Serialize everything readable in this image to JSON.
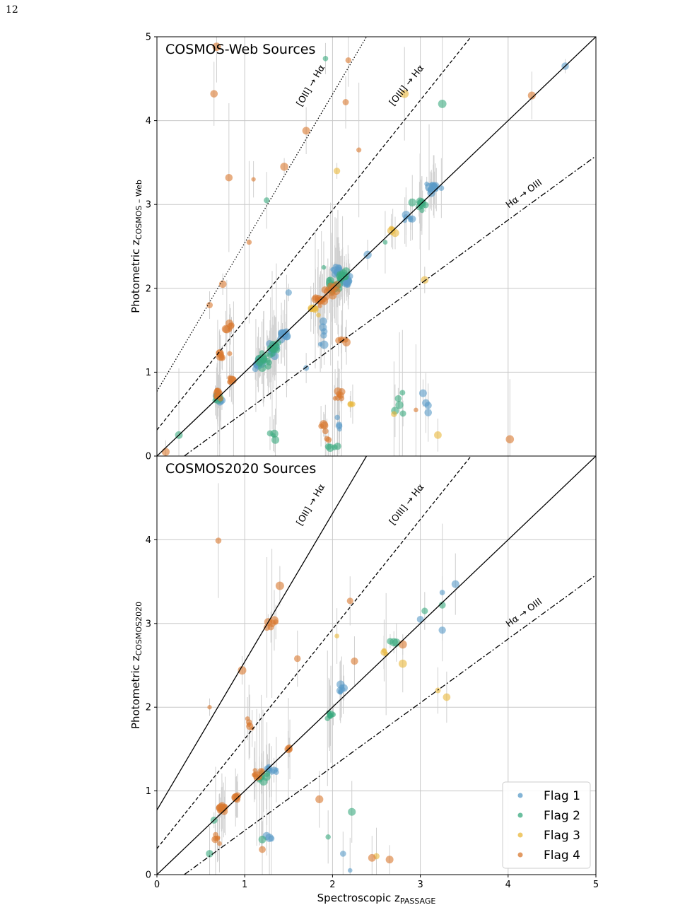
{
  "page_number": "12",
  "colors": {
    "flag1": "#5a9bc8",
    "flag2": "#3aaa7f",
    "flag3": "#e9b73a",
    "flag4": "#d8782f",
    "grid": "#c8c8c8",
    "errbar": "#d0d0d0"
  },
  "shared_x": {
    "label_main": "Spectroscopic z",
    "label_sub": "PASSAGE",
    "xlim": [
      0,
      5
    ],
    "ticks": [
      "0",
      "1",
      "2",
      "3",
      "4",
      "5"
    ]
  },
  "legend": {
    "placement": "lower-right",
    "items": [
      "Flag 1",
      "Flag 2",
      "Flag 3",
      "Flag 4"
    ]
  },
  "chart_data": [
    {
      "type": "scatter",
      "title": "COSMOS-Web Sources",
      "ylabel_main": "Photometric z",
      "ylabel_sub": "COSMOS – Web",
      "xlim": [
        0,
        5
      ],
      "ylim": [
        0,
        5
      ],
      "yticks": [
        "0",
        "1",
        "2",
        "3",
        "4",
        "5"
      ],
      "grid": true,
      "relations": [
        {
          "label": "[OII] → Hα",
          "style": "dotted",
          "slope": 1.7712,
          "intercept": 0.7712,
          "label_at": [
            1.78,
            4.4
          ]
        },
        {
          "label": "[OIII] → Hα",
          "style": "dashed",
          "slope": 1.3107,
          "intercept": 0.3107,
          "label_at": [
            2.87,
            4.4
          ]
        },
        {
          "label": "",
          "style": "solid",
          "slope": 1,
          "intercept": 0
        },
        {
          "label": "Hα → OIII",
          "style": "dashdot",
          "slope": 0.763,
          "intercept": -0.237,
          "label_at": [
            4.2,
            3.1
          ]
        }
      ],
      "series": [
        {
          "name": "Flag 1",
          "clusters": [
            [
              1.15,
              1.1,
              0.1,
              0.1,
              12
            ],
            [
              1.32,
              1.25,
              0.12,
              0.12,
              14
            ],
            [
              1.45,
              1.45,
              0.1,
              0.1,
              10
            ],
            [
              2.05,
              2.2,
              0.08,
              0.08,
              14
            ],
            [
              2.15,
              2.1,
              0.08,
              0.08,
              12
            ],
            [
              3.15,
              3.2,
              0.1,
              0.1,
              14
            ],
            [
              2.85,
              2.85,
              0.1,
              0.1,
              6
            ],
            [
              0.72,
              0.68,
              0.06,
              0.06,
              6
            ],
            [
              1.9,
              1.3,
              0.06,
              0.5,
              6
            ],
            [
              2.1,
              0.3,
              0.1,
              0.2,
              4
            ],
            [
              3.05,
              0.5,
              0.15,
              0.4,
              4
            ]
          ],
          "extras": [
            [
              4.65,
              4.65
            ],
            [
              1.7,
              1.05
            ],
            [
              1.5,
              1.95
            ],
            [
              2.4,
              2.4
            ]
          ]
        },
        {
          "name": "Flag 2",
          "clusters": [
            [
              1.2,
              1.15,
              0.12,
              0.12,
              16
            ],
            [
              1.35,
              1.3,
              0.1,
              0.1,
              12
            ],
            [
              2.0,
              2.05,
              0.1,
              0.1,
              16
            ],
            [
              2.1,
              2.15,
              0.08,
              0.08,
              12
            ],
            [
              3.0,
              3.0,
              0.12,
              0.12,
              10
            ],
            [
              0.7,
              0.7,
              0.06,
              0.06,
              8
            ],
            [
              2.75,
              0.6,
              0.1,
              0.3,
              5
            ],
            [
              1.3,
              0.3,
              0.1,
              0.2,
              4
            ],
            [
              2.0,
              0.1,
              0.1,
              0.05,
              4
            ]
          ],
          "extras": [
            [
              1.92,
              4.74
            ],
            [
              3.25,
              4.2
            ],
            [
              1.25,
              3.05
            ],
            [
              0.25,
              0.25
            ],
            [
              2.6,
              2.55
            ],
            [
              1.9,
              2.25
            ]
          ]
        },
        {
          "name": "Flag 3",
          "clusters": [
            [
              1.8,
              1.75,
              0.08,
              0.08,
              6
            ],
            [
              2.7,
              2.7,
              0.08,
              0.08,
              4
            ],
            [
              2.2,
              0.6,
              0.1,
              0.2,
              3
            ]
          ],
          "extras": [
            [
              2.82,
              4.32
            ],
            [
              2.05,
              3.4
            ],
            [
              2.7,
              0.5
            ],
            [
              3.05,
              2.1
            ],
            [
              3.2,
              0.25
            ]
          ]
        },
        {
          "name": "Flag 4",
          "clusters": [
            [
              0.7,
              0.75,
              0.07,
              0.08,
              10
            ],
            [
              0.85,
              0.9,
              0.06,
              0.06,
              6
            ],
            [
              0.75,
              1.2,
              0.1,
              0.12,
              7
            ],
            [
              0.8,
              1.55,
              0.08,
              0.12,
              6
            ],
            [
              1.85,
              1.85,
              0.1,
              0.1,
              14
            ],
            [
              2.0,
              2.0,
              0.1,
              0.12,
              12
            ],
            [
              2.1,
              0.7,
              0.1,
              0.15,
              8
            ],
            [
              1.9,
              0.3,
              0.1,
              0.2,
              6
            ],
            [
              2.1,
              1.4,
              0.1,
              0.1,
              5
            ]
          ],
          "extras": [
            [
              0.65,
              4.32
            ],
            [
              0.68,
              4.88
            ],
            [
              0.82,
              3.32
            ],
            [
              1.1,
              3.3
            ],
            [
              1.45,
              3.45
            ],
            [
              1.7,
              3.88
            ],
            [
              2.15,
              4.22
            ],
            [
              2.18,
              4.72
            ],
            [
              2.3,
              3.65
            ],
            [
              1.05,
              2.55
            ],
            [
              0.75,
              2.05
            ],
            [
              0.1,
              0.05
            ],
            [
              4.02,
              0.2
            ],
            [
              4.27,
              4.3
            ],
            [
              0.6,
              1.8
            ],
            [
              2.95,
              0.55
            ]
          ]
        }
      ]
    },
    {
      "type": "scatter",
      "title": "COSMOS2020 Sources",
      "ylabel_main": "Photometric z",
      "ylabel_sub": "COSMOS2020",
      "xlim": [
        0,
        5
      ],
      "ylim": [
        0,
        5
      ],
      "yticks": [
        "0",
        "1",
        "2",
        "3",
        "4",
        ""
      ],
      "grid": true,
      "relations": [
        {
          "label": "[OII] → Hα",
          "style": "solid",
          "slope": 1.7712,
          "intercept": 0.7712,
          "label_at": [
            1.78,
            4.4
          ]
        },
        {
          "label": "[OIII] → Hα",
          "style": "dashed",
          "slope": 1.3107,
          "intercept": 0.3107,
          "label_at": [
            2.87,
            4.4
          ]
        },
        {
          "label": "",
          "style": "solid",
          "slope": 1,
          "intercept": 0
        },
        {
          "label": "Hα → OIII",
          "style": "dashdot",
          "slope": 0.763,
          "intercept": -0.237,
          "label_at": [
            4.2,
            3.1
          ]
        }
      ],
      "series": [
        {
          "name": "Flag 1",
          "clusters": [
            [
              1.3,
              1.25,
              0.08,
              0.08,
              8
            ],
            [
              2.1,
              2.2,
              0.08,
              0.1,
              8
            ],
            [
              1.3,
              0.45,
              0.12,
              0.08,
              3
            ]
          ],
          "extras": [
            [
              3.25,
              3.37
            ],
            [
              3.4,
              3.47
            ],
            [
              3.0,
              3.05
            ],
            [
              3.25,
              2.92
            ],
            [
              2.2,
              0.05
            ],
            [
              2.12,
              0.25
            ]
          ]
        },
        {
          "name": "Flag 2",
          "clusters": [
            [
              1.2,
              1.15,
              0.08,
              0.08,
              8
            ],
            [
              1.95,
              1.9,
              0.08,
              0.08,
              8
            ],
            [
              2.7,
              2.75,
              0.08,
              0.08,
              3
            ]
          ],
          "extras": [
            [
              3.25,
              3.22
            ],
            [
              3.05,
              3.15
            ],
            [
              0.65,
              0.65
            ],
            [
              0.6,
              0.25
            ],
            [
              1.2,
              0.42
            ],
            [
              2.22,
              0.75
            ],
            [
              1.95,
              0.45
            ]
          ]
        },
        {
          "name": "Flag 3",
          "clusters": [
            [
              2.6,
              2.65,
              0.06,
              0.06,
              3
            ]
          ],
          "extras": [
            [
              3.2,
              2.2
            ],
            [
              3.3,
              2.12
            ],
            [
              2.5,
              0.22
            ],
            [
              2.8,
              2.52
            ],
            [
              2.05,
              2.85
            ]
          ]
        },
        {
          "name": "Flag 4",
          "clusters": [
            [
              0.75,
              0.8,
              0.08,
              0.08,
              12
            ],
            [
              0.9,
              0.92,
              0.05,
              0.05,
              6
            ],
            [
              1.15,
              1.2,
              0.08,
              0.08,
              8
            ],
            [
              1.3,
              3.0,
              0.08,
              0.15,
              6
            ],
            [
              1.05,
              1.8,
              0.08,
              0.1,
              5
            ],
            [
              0.7,
              0.45,
              0.1,
              0.12,
              6
            ],
            [
              1.5,
              1.5,
              0.05,
              0.05,
              4
            ]
          ],
          "extras": [
            [
              0.7,
              3.99
            ],
            [
              1.4,
              3.45
            ],
            [
              0.6,
              2.0
            ],
            [
              0.97,
              2.44
            ],
            [
              1.6,
              2.58
            ],
            [
              1.85,
              0.9
            ],
            [
              2.45,
              0.2
            ],
            [
              2.65,
              0.18
            ],
            [
              1.2,
              0.3
            ],
            [
              2.8,
              2.75
            ],
            [
              2.2,
              3.27
            ],
            [
              2.25,
              2.55
            ]
          ]
        }
      ]
    }
  ]
}
